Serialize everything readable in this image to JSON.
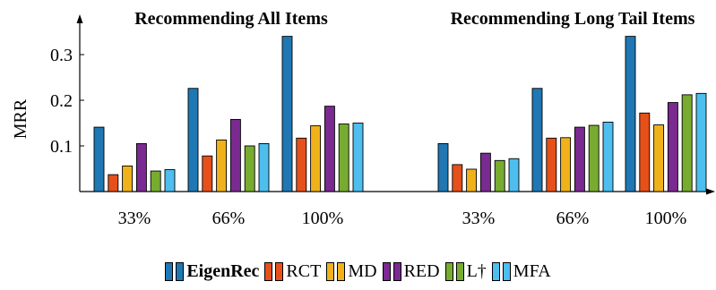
{
  "chart_data": {
    "type": "bar",
    "ylabel": "MRR",
    "ylim": [
      0,
      0.34
    ],
    "yticks": [
      "0.1",
      "0.2",
      "0.3"
    ],
    "ytick_values": [
      0.1,
      0.2,
      0.3
    ],
    "colors": [
      "#1f77b4",
      "#e6501a",
      "#f0b21b",
      "#7a2a90",
      "#77ac30",
      "#4dbeee"
    ],
    "panels": [
      {
        "title": "Recommending All Items",
        "categories": [
          "33%",
          "66%",
          "100%"
        ],
        "series": [
          {
            "name": "EigenRec",
            "values": [
              0.141,
              0.226,
              0.34
            ]
          },
          {
            "name": "RCT",
            "values": [
              0.037,
              0.078,
              0.117
            ]
          },
          {
            "name": "MD",
            "values": [
              0.056,
              0.113,
              0.144
            ]
          },
          {
            "name": "RED",
            "values": [
              0.105,
              0.158,
              0.187
            ]
          },
          {
            "name": "L†",
            "values": [
              0.045,
              0.1,
              0.148
            ]
          },
          {
            "name": "MFA",
            "values": [
              0.048,
              0.105,
              0.15
            ]
          }
        ]
      },
      {
        "title": "Recommending Long Tail Items",
        "categories": [
          "33%",
          "66%",
          "100%"
        ],
        "series": [
          {
            "name": "EigenRec",
            "values": [
              0.105,
              0.226,
              0.34
            ]
          },
          {
            "name": "RCT",
            "values": [
              0.059,
              0.117,
              0.172
            ]
          },
          {
            "name": "MD",
            "values": [
              0.049,
              0.118,
              0.146
            ]
          },
          {
            "name": "RED",
            "values": [
              0.084,
              0.141,
              0.195
            ]
          },
          {
            "name": "L†",
            "values": [
              0.068,
              0.145,
              0.212
            ]
          },
          {
            "name": "MFA",
            "values": [
              0.072,
              0.152,
              0.215
            ]
          }
        ]
      }
    ],
    "legend": [
      {
        "label": "EigenRec",
        "bold": true
      },
      {
        "label": "RCT",
        "bold": false
      },
      {
        "label": "MD",
        "bold": false
      },
      {
        "label": "RED",
        "bold": false
      },
      {
        "label": "L†",
        "bold": false
      },
      {
        "label": "MFA",
        "bold": false
      }
    ],
    "legend_position": "bottom-center",
    "grid": false
  }
}
